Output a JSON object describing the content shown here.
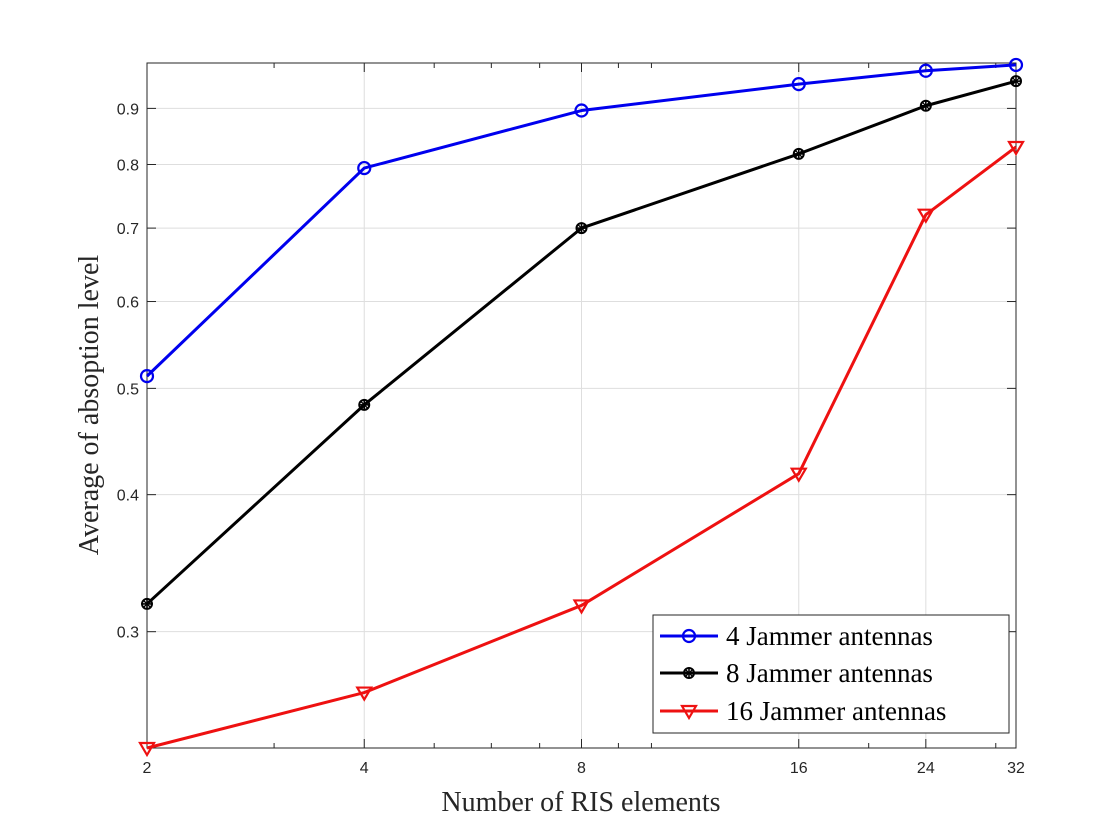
{
  "chart_data": {
    "type": "line",
    "title": "",
    "xlabel": "Number of RIS elements",
    "ylabel": "Average of absoption level",
    "x_scale": "log2",
    "y_scale": "log",
    "x": [
      2,
      4,
      8,
      16,
      24,
      32
    ],
    "x_tick_labels": [
      "2",
      "4",
      "8",
      "16",
      "24",
      "32"
    ],
    "y_ticks": [
      0.3,
      0.4,
      0.5,
      0.6,
      0.7,
      0.8,
      0.9
    ],
    "y_tick_labels": [
      "0.3",
      "0.4",
      "0.5",
      "0.6",
      "0.7",
      "0.8",
      "0.9"
    ],
    "ylim": [
      0.235,
      0.99
    ],
    "grid": true,
    "legend_position": "bottom-right",
    "series": [
      {
        "name": "4 Jammer antennas",
        "color": "#0000ee",
        "marker": "circle",
        "values": [
          0.513,
          0.794,
          0.896,
          0.947,
          0.974,
          0.986
        ]
      },
      {
        "name": "8 Jammer antennas",
        "color": "#000000",
        "marker": "circle-star",
        "values": [
          0.318,
          0.483,
          0.7,
          0.818,
          0.905,
          0.953
        ]
      },
      {
        "name": "16 Jammer antennas",
        "color": "#ee1111",
        "marker": "triangle-down",
        "values": [
          0.235,
          0.264,
          0.317,
          0.418,
          0.72,
          0.83
        ]
      }
    ]
  }
}
